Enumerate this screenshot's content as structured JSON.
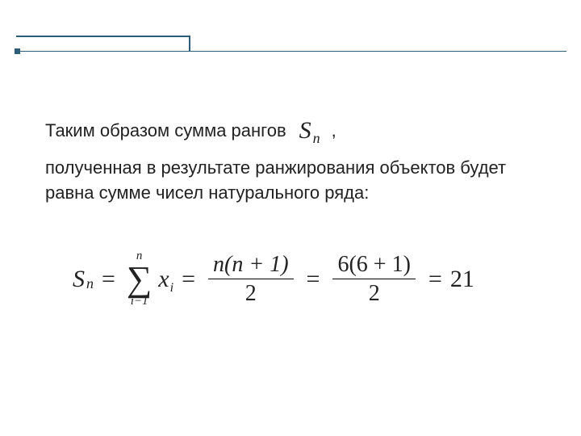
{
  "colors": {
    "rule": "#2f5d7c",
    "text": "#222222",
    "background": "#ffffff"
  },
  "typography": {
    "body_font": "Arial",
    "body_size_pt": 17,
    "formula_font": "Times New Roman",
    "formula_size_pt": 22
  },
  "text": {
    "line1_before": "Таким образом сумма рангов",
    "sn_symbol_S": "S",
    "sn_symbol_sub": "n",
    "line1_comma": ",",
    "para": "полученная в результате ранжирования объектов будет равна сумме чисел натурального ряда:"
  },
  "formula": {
    "lhs_S": "S",
    "lhs_sub": "n",
    "eq": "=",
    "sum_upper": "n",
    "sum_sigma": "∑",
    "sum_lower": "i−1",
    "sum_term_x": "x",
    "sum_term_sub": "i",
    "frac1_num": "n(n + 1)",
    "frac1_den": "2",
    "frac2_num": "6(6 + 1)",
    "frac2_den": "2",
    "result": "21"
  }
}
